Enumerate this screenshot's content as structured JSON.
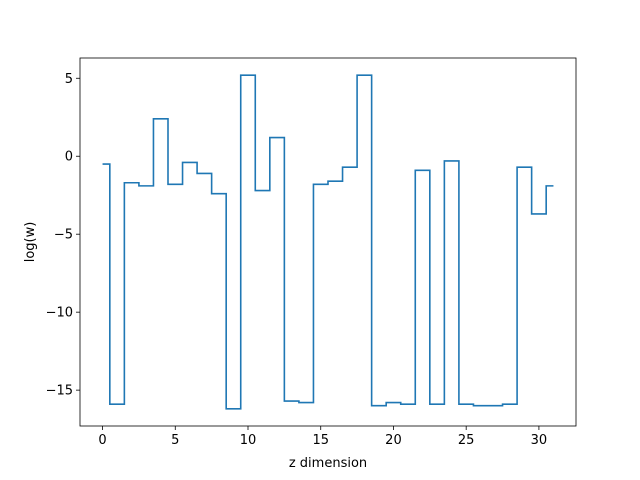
{
  "chart_data": {
    "type": "line",
    "drawstyle": "steps-mid",
    "title": "",
    "xlabel": "z dimension",
    "ylabel": "log(w)",
    "xlim": [
      -1.55,
      32.55
    ],
    "ylim": [
      -17.3,
      6.3
    ],
    "x_ticks": [
      0,
      5,
      10,
      15,
      20,
      25,
      30
    ],
    "x_tick_labels": [
      "0",
      "5",
      "10",
      "15",
      "20",
      "25",
      "30"
    ],
    "y_ticks": [
      5,
      0,
      -5,
      -10,
      -15
    ],
    "y_tick_labels": [
      "5",
      "0",
      "−5",
      "−10",
      "−15"
    ],
    "grid": false,
    "series_color": "#1f77b4",
    "series": [
      {
        "x": [
          0,
          1,
          2,
          3,
          4,
          5,
          6,
          7,
          8,
          9,
          10,
          11,
          12,
          13,
          14,
          15,
          16,
          17,
          18,
          19,
          20,
          21,
          22,
          23,
          24,
          25,
          26,
          27,
          28,
          29,
          30,
          31
        ],
        "values": [
          -0.5,
          -15.9,
          -1.7,
          -1.9,
          2.4,
          -1.8,
          -0.4,
          -1.1,
          -2.4,
          -16.2,
          5.2,
          -2.2,
          1.2,
          -15.7,
          -15.8,
          -1.8,
          -1.6,
          -0.7,
          5.2,
          -16.0,
          -15.8,
          -15.9,
          -0.9,
          -15.9,
          -0.3,
          -15.9,
          -16.0,
          -16.0,
          -15.9,
          -0.7,
          -3.7,
          -1.9
        ]
      }
    ]
  }
}
